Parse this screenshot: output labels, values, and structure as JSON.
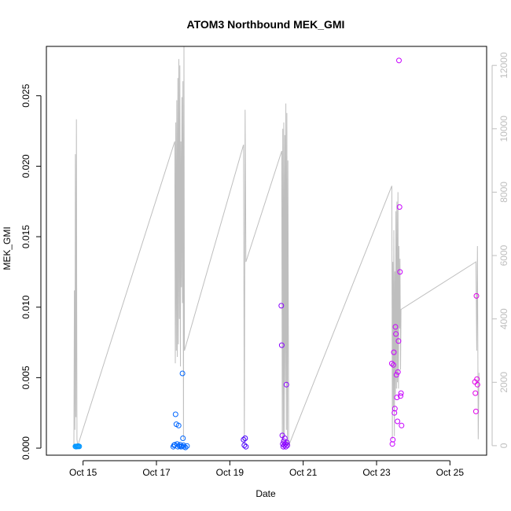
{
  "chart_data": {
    "type": "scatter",
    "title": "ATOM3 Northbound MEK_GMI",
    "xlabel": "Date",
    "ylabel": "MEK_GMI",
    "xlim": [
      "2016-10-14T00:00",
      "2016-10-26T00:00"
    ],
    "ylim": [
      -0.0005,
      0.0285
    ],
    "y2lim": [
      -300,
      12600
    ],
    "grid": false,
    "legend": "none",
    "x_ticks": [
      {
        "value": "2016-10-15T00:00",
        "label": "Oct 15"
      },
      {
        "value": "2016-10-17T00:00",
        "label": "Oct 17"
      },
      {
        "value": "2016-10-19T00:00",
        "label": "Oct 19"
      },
      {
        "value": "2016-10-21T00:00",
        "label": "Oct 21"
      },
      {
        "value": "2016-10-23T00:00",
        "label": "Oct 23"
      },
      {
        "value": "2016-10-25T00:00",
        "label": "Oct 25"
      }
    ],
    "y_ticks": [
      {
        "value": 0.0,
        "label": "0.000"
      },
      {
        "value": 0.005,
        "label": "0.005"
      },
      {
        "value": 0.01,
        "label": "0.010"
      },
      {
        "value": 0.015,
        "label": "0.015"
      },
      {
        "value": 0.02,
        "label": "0.020"
      },
      {
        "value": 0.025,
        "label": "0.025"
      }
    ],
    "y2_ticks": [
      {
        "value": 0,
        "label": "0"
      },
      {
        "value": 2000,
        "label": "2000"
      },
      {
        "value": 4000,
        "label": "4000"
      },
      {
        "value": 6000,
        "label": "6000"
      },
      {
        "value": 8000,
        "label": "8000"
      },
      {
        "value": 10000,
        "label": "10000"
      },
      {
        "value": 12000,
        "label": "12000"
      }
    ],
    "colors": {
      "axis": "#000000",
      "altitude_line": "#bebebe",
      "right_axis": "#bebebe",
      "point_scale": [
        "#0096ff",
        "#0066ff",
        "#4a00ff",
        "#8a00ff",
        "#c800ff",
        "#e000e8"
      ]
    },
    "series": [
      {
        "type": "line",
        "axis": "right",
        "points": [
          [
            "2016-10-14T18:00",
            0
          ],
          [
            "2016-10-14T18:20",
            4900
          ],
          [
            "2016-10-14T18:40",
            500
          ],
          [
            "2016-10-14T19:00",
            9200
          ],
          [
            "2016-10-14T19:20",
            900
          ],
          [
            "2016-10-14T19:40",
            10300
          ],
          [
            "2016-10-14T20:00",
            200
          ],
          [
            "2016-10-14T20:30",
            0
          ],
          [
            "2016-10-17T12:00",
            9600
          ],
          [
            "2016-10-17T12:20",
            2600
          ],
          [
            "2016-10-17T12:40",
            10200
          ],
          [
            "2016-10-17T13:00",
            3000
          ],
          [
            "2016-10-17T13:20",
            10900
          ],
          [
            "2016-10-17T13:40",
            2800
          ],
          [
            "2016-10-17T14:00",
            11600
          ],
          [
            "2016-10-17T14:20",
            3200
          ],
          [
            "2016-10-17T14:40",
            12200
          ],
          [
            "2016-10-17T15:00",
            4000
          ],
          [
            "2016-10-17T15:20",
            12000
          ],
          [
            "2016-10-17T15:40",
            2500
          ],
          [
            "2016-10-17T16:00",
            9600
          ],
          [
            "2016-10-17T16:20",
            5000
          ],
          [
            "2016-10-17T16:40",
            11000
          ],
          [
            "2016-10-17T17:00",
            4500
          ],
          [
            "2016-10-17T17:20",
            11500
          ],
          [
            "2016-10-17T17:40",
            200
          ],
          [
            "2016-10-17T18:00",
            12600
          ],
          [
            "2016-10-17T18:20",
            3000
          ],
          [
            "2016-10-19T09:00",
            9500
          ],
          [
            "2016-10-19T09:30",
            0
          ],
          [
            "2016-10-19T10:00",
            10600
          ],
          [
            "2016-10-19T10:30",
            5800
          ],
          [
            "2016-10-20T10:00",
            9300
          ],
          [
            "2016-10-20T10:20",
            0
          ],
          [
            "2016-10-20T10:40",
            10000
          ],
          [
            "2016-10-20T11:00",
            200
          ],
          [
            "2016-10-20T11:20",
            10200
          ],
          [
            "2016-10-20T11:40",
            300
          ],
          [
            "2016-10-20T12:00",
            9800
          ],
          [
            "2016-10-20T12:20",
            2000
          ],
          [
            "2016-10-20T12:40",
            10800
          ],
          [
            "2016-10-20T13:00",
            500
          ],
          [
            "2016-10-20T13:20",
            10500
          ],
          [
            "2016-10-20T13:40",
            0
          ],
          [
            "2016-10-20T14:00",
            9000
          ],
          [
            "2016-10-20T14:30",
            0
          ],
          [
            "2016-10-23T10:00",
            8200
          ],
          [
            "2016-10-23T10:20",
            200
          ],
          [
            "2016-10-23T10:40",
            5800
          ],
          [
            "2016-10-23T11:00",
            1200
          ],
          [
            "2016-10-23T11:20",
            6800
          ],
          [
            "2016-10-23T11:40",
            300
          ],
          [
            "2016-10-23T12:00",
            5500
          ],
          [
            "2016-10-23T12:20",
            1600
          ],
          [
            "2016-10-23T12:40",
            7400
          ],
          [
            "2016-10-23T13:00",
            1800
          ],
          [
            "2016-10-23T13:20",
            7700
          ],
          [
            "2016-10-23T13:40",
            2000
          ],
          [
            "2016-10-23T14:00",
            8000
          ],
          [
            "2016-10-23T14:20",
            1800
          ],
          [
            "2016-10-23T14:40",
            6300
          ],
          [
            "2016-10-23T15:00",
            3700
          ],
          [
            "2016-10-23T15:20",
            5900
          ],
          [
            "2016-10-23T15:40",
            2400
          ],
          [
            "2016-10-23T16:00",
            4300
          ],
          [
            "2016-10-25T17:00",
            5800
          ],
          [
            "2016-10-25T17:30",
            3000
          ],
          [
            "2016-10-25T18:00",
            6300
          ],
          [
            "2016-10-25T18:30",
            200
          ],
          [
            "2016-10-25T19:00",
            2300
          ]
        ]
      },
      {
        "type": "scatter",
        "axis": "left",
        "points": [
          [
            "2016-10-14T19:00",
            0.00012,
            0
          ],
          [
            "2016-10-14T19:30",
            0.00011,
            0
          ],
          [
            "2016-10-14T20:00",
            0.00013,
            0
          ],
          [
            "2016-10-14T20:30",
            0.00012,
            0
          ],
          [
            "2016-10-14T21:00",
            0.00014,
            0
          ],
          [
            "2016-10-14T21:30",
            0.00012,
            0
          ],
          [
            "2016-10-17T11:00",
            0.0001,
            1
          ],
          [
            "2016-10-17T11:30",
            0.0002,
            1
          ],
          [
            "2016-10-17T12:00",
            0.00024,
            1
          ],
          [
            "2016-10-17T12:30",
            0.0024,
            1
          ],
          [
            "2016-10-17T13:00",
            0.0017,
            1
          ],
          [
            "2016-10-17T13:30",
            0.0003,
            1
          ],
          [
            "2016-10-17T14:00",
            0.0001,
            1
          ],
          [
            "2016-10-17T14:30",
            0.0016,
            1
          ],
          [
            "2016-10-17T15:00",
            0.00015,
            1
          ],
          [
            "2016-10-17T15:30",
            0.00025,
            1
          ],
          [
            "2016-10-17T16:00",
            0.0001,
            1
          ],
          [
            "2016-10-17T16:30",
            0.00012,
            1
          ],
          [
            "2016-10-17T17:00",
            0.0053,
            1
          ],
          [
            "2016-10-17T17:20",
            0.0007,
            1
          ],
          [
            "2016-10-17T17:40",
            0.0002,
            1
          ],
          [
            "2016-10-17T18:00",
            0.0001,
            1
          ],
          [
            "2016-10-17T19:00",
            5e-05,
            1
          ],
          [
            "2016-10-17T20:00",
            0.00015,
            1
          ],
          [
            "2016-10-19T09:00",
            0.0006,
            2
          ],
          [
            "2016-10-19T09:30",
            0.0002,
            2
          ],
          [
            "2016-10-19T10:00",
            0.0007,
            2
          ],
          [
            "2016-10-19T10:30",
            0.0001,
            2
          ],
          [
            "2016-10-20T09:40",
            0.0101,
            3
          ],
          [
            "2016-10-20T10:00",
            0.0073,
            3
          ],
          [
            "2016-10-20T10:20",
            0.0009,
            3
          ],
          [
            "2016-10-20T10:40",
            0.0003,
            3
          ],
          [
            "2016-10-20T11:00",
            0.0001,
            3
          ],
          [
            "2016-10-20T11:20",
            0.0005,
            3
          ],
          [
            "2016-10-20T11:40",
            0.0002,
            3
          ],
          [
            "2016-10-20T12:00",
            0.0007,
            3
          ],
          [
            "2016-10-20T12:20",
            0.0003,
            3
          ],
          [
            "2016-10-20T12:40",
            0.0001,
            3
          ],
          [
            "2016-10-20T13:00",
            0.0045,
            3
          ],
          [
            "2016-10-20T13:20",
            0.0004,
            3
          ],
          [
            "2016-10-20T13:40",
            0.0002,
            3
          ],
          [
            "2016-10-23T10:00",
            0.006,
            4
          ],
          [
            "2016-10-23T10:20",
            0.0003,
            4
          ],
          [
            "2016-10-23T10:40",
            0.0006,
            4
          ],
          [
            "2016-10-23T11:00",
            0.0059,
            4
          ],
          [
            "2016-10-23T11:20",
            0.0068,
            4
          ],
          [
            "2016-10-23T11:40",
            0.0025,
            4
          ],
          [
            "2016-10-23T12:00",
            0.0028,
            4
          ],
          [
            "2016-10-23T12:20",
            0.0086,
            4
          ],
          [
            "2016-10-23T12:40",
            0.0081,
            4
          ],
          [
            "2016-10-23T13:00",
            0.0052,
            4
          ],
          [
            "2016-10-23T13:20",
            0.0036,
            4
          ],
          [
            "2016-10-23T13:40",
            0.0019,
            4
          ],
          [
            "2016-10-23T14:00",
            0.0054,
            4
          ],
          [
            "2016-10-23T14:20",
            0.0076,
            4
          ],
          [
            "2016-10-23T14:40",
            0.0275,
            4
          ],
          [
            "2016-10-23T15:00",
            0.0171,
            4
          ],
          [
            "2016-10-23T15:20",
            0.0125,
            4
          ],
          [
            "2016-10-23T15:40",
            0.0037,
            4
          ],
          [
            "2016-10-23T16:00",
            0.0039,
            4
          ],
          [
            "2016-10-23T16:20",
            0.0016,
            4
          ],
          [
            "2016-10-25T16:20",
            0.0047,
            5
          ],
          [
            "2016-10-25T16:40",
            0.0039,
            5
          ],
          [
            "2016-10-25T17:00",
            0.0026,
            5
          ],
          [
            "2016-10-25T17:20",
            0.0108,
            5
          ],
          [
            "2016-10-25T17:40",
            0.0049,
            5
          ],
          [
            "2016-10-25T18:00",
            0.0045,
            5
          ]
        ]
      }
    ]
  }
}
